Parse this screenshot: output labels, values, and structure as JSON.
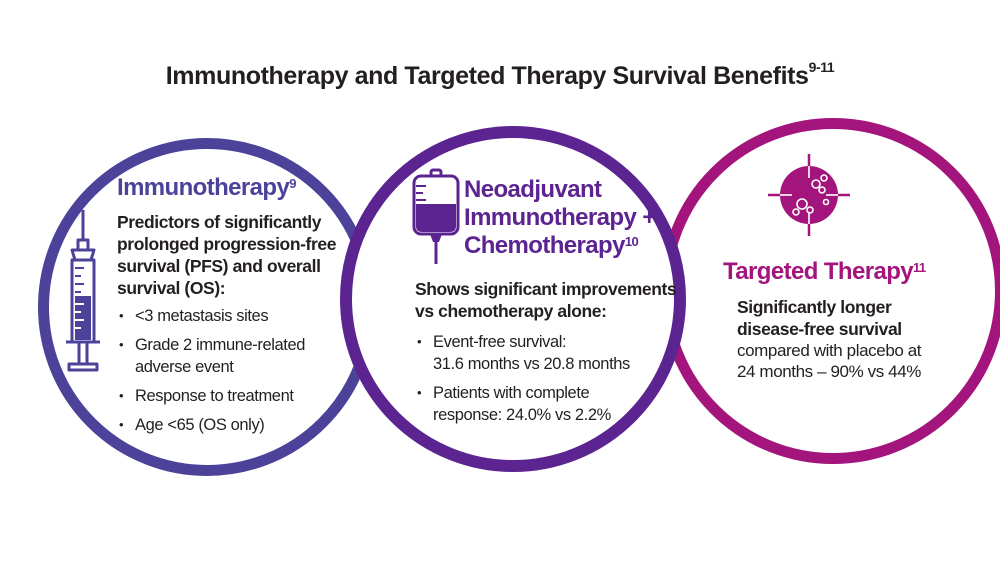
{
  "title": "Immunotherapy and Targeted Therapy Survival Benefits",
  "title_ref": "9-11",
  "colors": {
    "immunotherapy": "#4c4299",
    "neoadjuvant": "#5c2490",
    "targeted": "#a3157c"
  },
  "immunotherapy": {
    "heading": "Immunotherapy",
    "ref": "9",
    "icon": "syringe-icon",
    "subheading_lines": [
      "Predictors of significantly",
      "prolonged progression-free",
      "survival (PFS) and overall",
      "survival (OS):"
    ],
    "bullets": [
      {
        "lines": [
          "<3 metastasis sites"
        ]
      },
      {
        "lines": [
          "Grade 2 immune-related",
          "adverse event"
        ]
      },
      {
        "lines": [
          "Response to treatment"
        ]
      },
      {
        "lines": [
          "Age <65 (OS only)"
        ]
      }
    ]
  },
  "neoadjuvant": {
    "heading_lines": [
      "Neoadjuvant",
      "Immunotherapy +",
      "Chemotherapy"
    ],
    "ref": "10",
    "icon": "iv-bag-icon",
    "subheading_lines": [
      "Shows significant improvements",
      "vs chemotherapy alone:"
    ],
    "bullets": [
      {
        "lines": [
          "Event-free survival:",
          "31.6 months vs 20.8 months"
        ]
      },
      {
        "lines": [
          "Patients with complete",
          "response: 24.0% vs 2.2%"
        ]
      }
    ]
  },
  "targeted": {
    "heading": "Targeted Therapy",
    "ref": "11",
    "icon": "target-cells-icon",
    "bold_lines": [
      "Significantly longer",
      "disease-free survival"
    ],
    "regular_lines": [
      "compared with placebo at",
      "24 months – 90% vs 44%"
    ]
  }
}
